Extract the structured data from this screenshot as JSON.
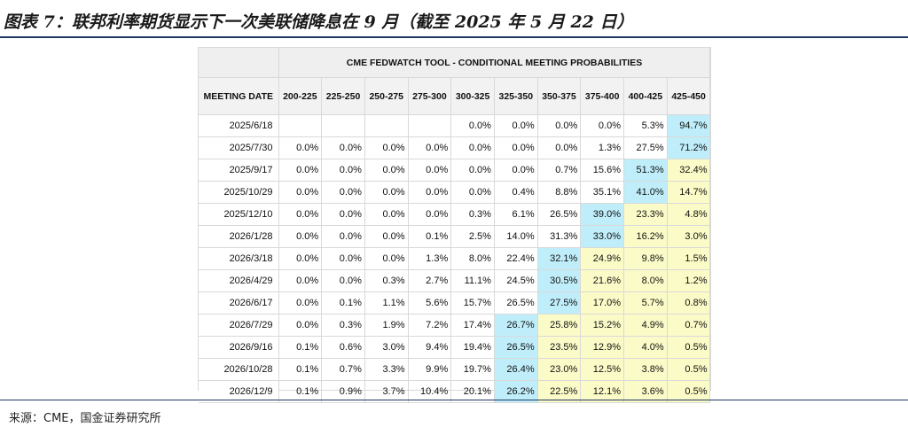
{
  "figure": {
    "title": "图表 7：联邦利率期货显示下一次美联储降息在 9 月（截至 2025 年 5 月 22 日）",
    "source": "来源：CME，国金证券研究所"
  },
  "table": {
    "super_header": "CME FEDWATCH TOOL - CONDITIONAL MEETING PROBABILITIES",
    "date_header": "MEETING DATE",
    "columns": [
      "200-225",
      "225-250",
      "250-275",
      "275-300",
      "300-325",
      "325-350",
      "350-375",
      "375-400",
      "400-425",
      "425-450"
    ],
    "rows": [
      {
        "date": "2025/6/18",
        "cells": [
          "",
          "",
          "",
          "",
          "0.0%",
          "0.0%",
          "0.0%",
          "0.0%",
          "5.3%",
          "94.7%"
        ],
        "shade": [
          "",
          "",
          "",
          "",
          "",
          "",
          "",
          "",
          "",
          "hi"
        ]
      },
      {
        "date": "2025/7/30",
        "cells": [
          "0.0%",
          "0.0%",
          "0.0%",
          "0.0%",
          "0.0%",
          "0.0%",
          "0.0%",
          "1.3%",
          "27.5%",
          "71.2%"
        ],
        "shade": [
          "",
          "",
          "",
          "",
          "",
          "",
          "",
          "",
          "",
          "hi"
        ]
      },
      {
        "date": "2025/9/17",
        "cells": [
          "0.0%",
          "0.0%",
          "0.0%",
          "0.0%",
          "0.0%",
          "0.0%",
          "0.7%",
          "15.6%",
          "51.3%",
          "32.4%"
        ],
        "shade": [
          "",
          "",
          "",
          "",
          "",
          "",
          "",
          "",
          "hi",
          "mid"
        ]
      },
      {
        "date": "2025/10/29",
        "cells": [
          "0.0%",
          "0.0%",
          "0.0%",
          "0.0%",
          "0.0%",
          "0.4%",
          "8.8%",
          "35.1%",
          "41.0%",
          "14.7%"
        ],
        "shade": [
          "",
          "",
          "",
          "",
          "",
          "",
          "",
          "",
          "hi",
          "mid"
        ]
      },
      {
        "date": "2025/12/10",
        "cells": [
          "0.0%",
          "0.0%",
          "0.0%",
          "0.0%",
          "0.3%",
          "6.1%",
          "26.5%",
          "39.0%",
          "23.3%",
          "4.8%"
        ],
        "shade": [
          "",
          "",
          "",
          "",
          "",
          "",
          "",
          "hi",
          "mid",
          "mid"
        ]
      },
      {
        "date": "2026/1/28",
        "cells": [
          "0.0%",
          "0.0%",
          "0.0%",
          "0.1%",
          "2.5%",
          "14.0%",
          "31.3%",
          "33.0%",
          "16.2%",
          "3.0%"
        ],
        "shade": [
          "",
          "",
          "",
          "",
          "",
          "",
          "",
          "hi",
          "mid",
          "mid"
        ]
      },
      {
        "date": "2026/3/18",
        "cells": [
          "0.0%",
          "0.0%",
          "0.0%",
          "1.3%",
          "8.0%",
          "22.4%",
          "32.1%",
          "24.9%",
          "9.8%",
          "1.5%"
        ],
        "shade": [
          "",
          "",
          "",
          "",
          "",
          "",
          "hi",
          "mid",
          "mid",
          "mid"
        ]
      },
      {
        "date": "2026/4/29",
        "cells": [
          "0.0%",
          "0.0%",
          "0.3%",
          "2.7%",
          "11.1%",
          "24.5%",
          "30.5%",
          "21.6%",
          "8.0%",
          "1.2%"
        ],
        "shade": [
          "",
          "",
          "",
          "",
          "",
          "",
          "hi",
          "mid",
          "mid",
          "mid"
        ]
      },
      {
        "date": "2026/6/17",
        "cells": [
          "0.0%",
          "0.1%",
          "1.1%",
          "5.6%",
          "15.7%",
          "26.5%",
          "27.5%",
          "17.0%",
          "5.7%",
          "0.8%"
        ],
        "shade": [
          "",
          "",
          "",
          "",
          "",
          "",
          "hi",
          "mid",
          "mid",
          "mid"
        ]
      },
      {
        "date": "2026/7/29",
        "cells": [
          "0.0%",
          "0.3%",
          "1.9%",
          "7.2%",
          "17.4%",
          "26.7%",
          "25.8%",
          "15.2%",
          "4.9%",
          "0.7%"
        ],
        "shade": [
          "",
          "",
          "",
          "",
          "",
          "hi",
          "mid",
          "mid",
          "mid",
          "mid"
        ]
      },
      {
        "date": "2026/9/16",
        "cells": [
          "0.1%",
          "0.6%",
          "3.0%",
          "9.4%",
          "19.4%",
          "26.5%",
          "23.5%",
          "12.9%",
          "4.0%",
          "0.5%"
        ],
        "shade": [
          "",
          "",
          "",
          "",
          "",
          "hi",
          "mid",
          "mid",
          "mid",
          "mid"
        ]
      },
      {
        "date": "2026/10/28",
        "cells": [
          "0.1%",
          "0.7%",
          "3.3%",
          "9.9%",
          "19.7%",
          "26.4%",
          "23.0%",
          "12.5%",
          "3.8%",
          "0.5%"
        ],
        "shade": [
          "",
          "",
          "",
          "",
          "",
          "hi",
          "mid",
          "mid",
          "mid",
          "mid"
        ]
      },
      {
        "date": "2026/12/9",
        "cells": [
          "0.1%",
          "0.9%",
          "3.7%",
          "10.4%",
          "20.1%",
          "26.2%",
          "22.5%",
          "12.1%",
          "3.6%",
          "0.5%"
        ],
        "shade": [
          "",
          "",
          "",
          "",
          "",
          "hi",
          "mid",
          "mid",
          "mid",
          "mid"
        ]
      }
    ]
  },
  "colors": {
    "highlight_max": "#bfeefa",
    "highlight_secondary": "#fbfbc8",
    "title_rule": "#1f3864"
  }
}
